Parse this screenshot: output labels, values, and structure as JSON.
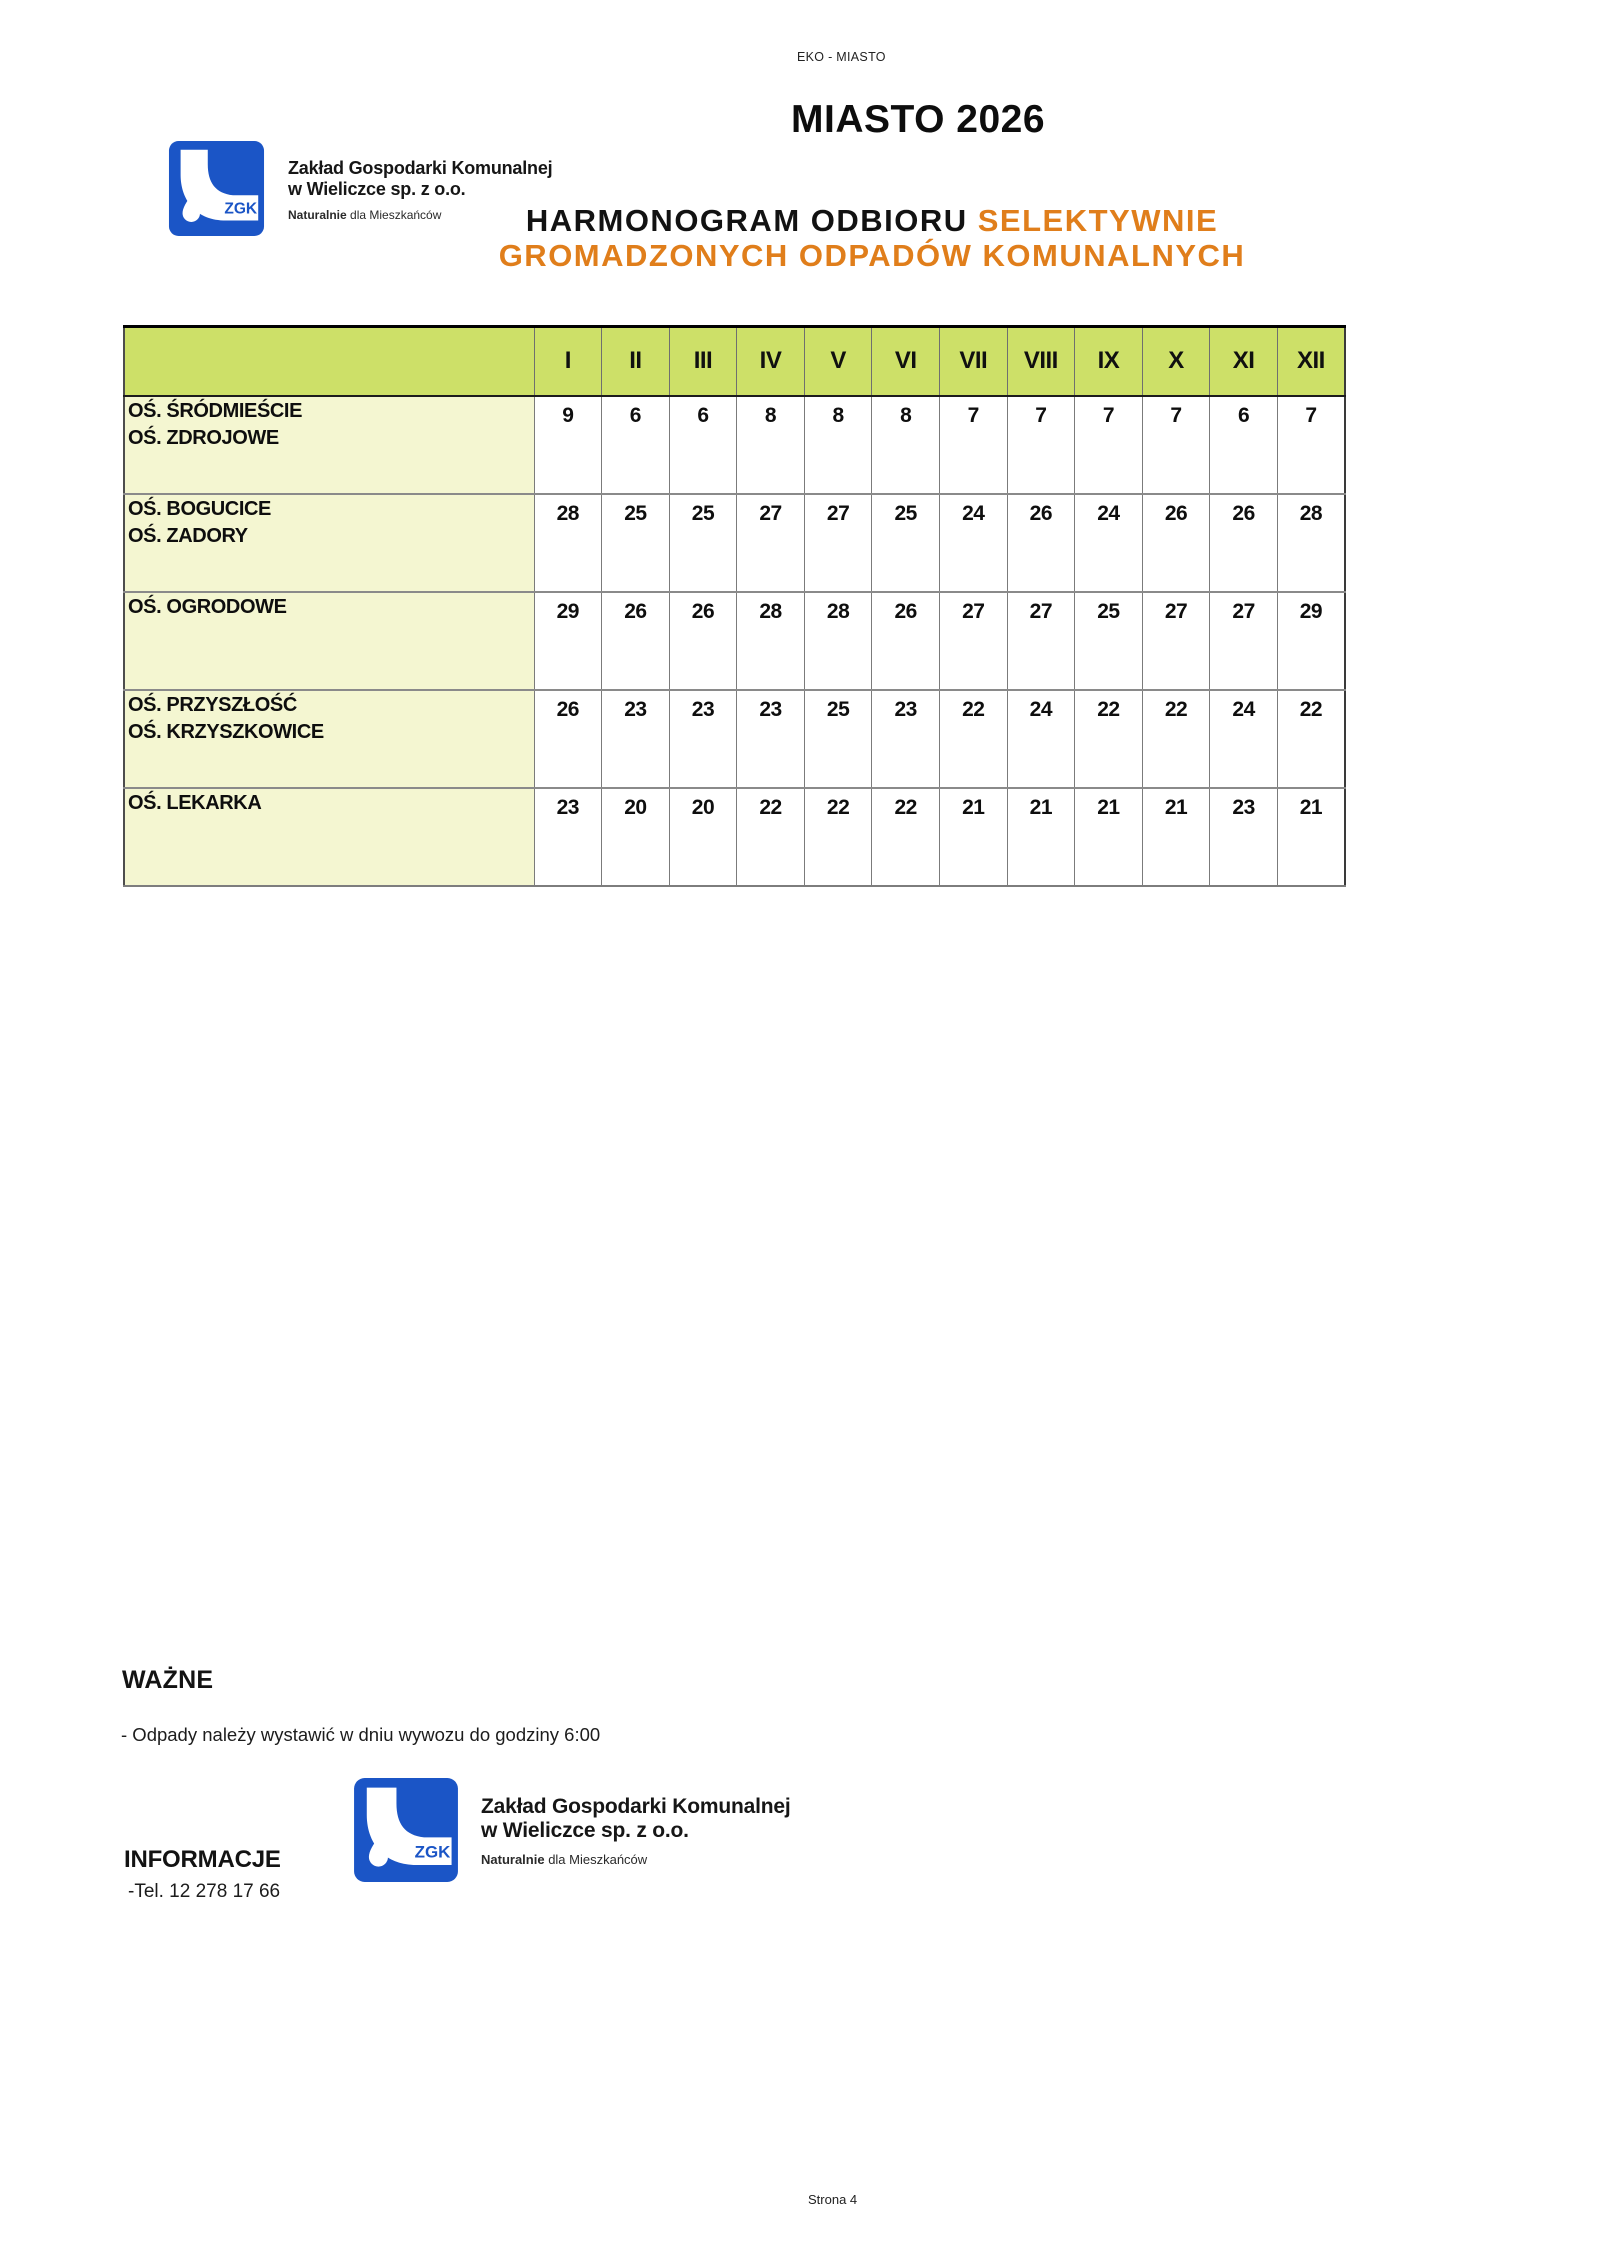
{
  "page": {
    "header_label": "EKO - MIASTO",
    "title": "MIASTO 2026",
    "subtitle_black": "HARMONOGRAM ODBIORU ",
    "subtitle_orange_line1": "SELEKTYWNIE",
    "subtitle_orange_line2": "GROMADZONYCH ODPADÓW KOMUNALNYCH",
    "page_number": "Strona 4"
  },
  "logo": {
    "abbr": "ZGK",
    "company_line1": "Zakład Gospodarki Komunalnej",
    "company_line2": "w Wieliczce sp. z o.o.",
    "tagline_bold": "Naturalnie",
    "tagline_rest": " dla Mieszkańców"
  },
  "colors": {
    "accent_orange": "#e07e1b",
    "logo_blue": "#1b55c6",
    "table_header_bg": "#cde068",
    "table_label_bg": "#f4f6d1"
  },
  "schedule_table": {
    "months": [
      "I",
      "II",
      "III",
      "IV",
      "V",
      "VI",
      "VII",
      "VIII",
      "IX",
      "X",
      "XI",
      "XII"
    ],
    "rows": [
      {
        "area_lines": [
          "OŚ. ŚRÓDMIEŚCIE",
          "OŚ. ZDROJOWE"
        ],
        "days": [
          9,
          6,
          6,
          8,
          8,
          8,
          7,
          7,
          7,
          7,
          6,
          7
        ]
      },
      {
        "area_lines": [
          "OŚ. BOGUCICE",
          "OŚ. ZADORY"
        ],
        "days": [
          28,
          25,
          25,
          27,
          27,
          25,
          24,
          26,
          24,
          26,
          26,
          28
        ]
      },
      {
        "area_lines": [
          "OŚ. OGRODOWE"
        ],
        "days": [
          29,
          26,
          26,
          28,
          28,
          26,
          27,
          27,
          25,
          27,
          27,
          29
        ]
      },
      {
        "area_lines": [
          "OŚ. PRZYSZŁOŚĆ",
          "OŚ. KRZYSZKOWICE"
        ],
        "days": [
          26,
          23,
          23,
          23,
          25,
          23,
          22,
          24,
          22,
          22,
          24,
          22
        ]
      },
      {
        "area_lines": [
          "OŚ. LEKARKA"
        ],
        "days": [
          23,
          20,
          20,
          22,
          22,
          22,
          21,
          21,
          21,
          21,
          23,
          21
        ]
      }
    ]
  },
  "notes": {
    "important_heading": "WAŻNE",
    "important_note": "- Odpady należy wystawić w dniu wywozu do godziny 6:00",
    "info_heading": "INFORMACJE",
    "info_phone": "-Tel. 12 278 17 66"
  }
}
